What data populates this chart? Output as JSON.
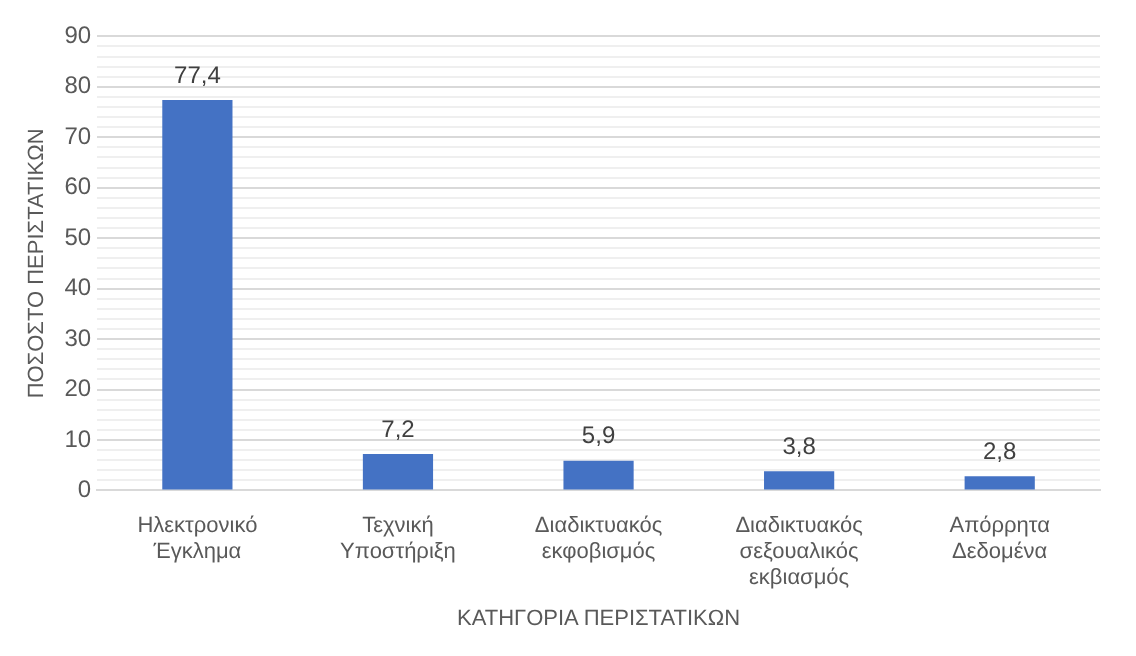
{
  "chart_data": {
    "type": "bar",
    "xlabel": "ΚΑΤΗΓΟΡΙΑ ΠΕΡΙΣΤΑΤΙΚΩΝ",
    "ylabel": "ΠΟΣΟΣΤΟ ΠΕΡΙΣΤΑΤΙΚΩΝ",
    "categories": [
      "Ηλεκτρονικό Έγκλημα",
      "Τεχνική  Υποστήριξη",
      "Διαδικτυακός εκφοβισμός",
      "Διαδικτυακός σεξουαλικός εκβιασμός",
      "Απόρρητα Δεδομένα"
    ],
    "values": [
      77.4,
      7.2,
      5.9,
      3.8,
      2.8
    ],
    "value_labels": [
      "77,4",
      "7,2",
      "5,9",
      "3,8",
      "2,8"
    ],
    "color": "#4472c4",
    "ylim": [
      0,
      90
    ],
    "yticks": [
      0,
      {
        "value": 2,
        "label": null
      },
      {
        "value": 4,
        "label": null
      },
      {
        "value": 6,
        "label": null
      },
      {
        "value": 8,
        "label": null
      },
      10,
      {
        "value": 12,
        "label": null
      },
      {
        "value": 14,
        "label": null
      },
      {
        "value": 16,
        "label": null
      },
      {
        "value": 18,
        "label": null
      },
      20,
      {
        "value": 22,
        "label": null
      },
      {
        "value": 24,
        "label": null
      },
      {
        "value": 26,
        "label": null
      },
      {
        "value": 28,
        "label": null
      },
      30,
      {
        "value": 32,
        "label": null
      },
      {
        "value": 34,
        "label": null
      },
      {
        "value": 36,
        "label": null
      },
      {
        "value": 38,
        "label": null
      },
      40,
      {
        "value": 42,
        "label": null
      },
      {
        "value": 44,
        "label": null
      },
      {
        "value": 46,
        "label": null
      },
      {
        "value": 48,
        "label": null
      },
      50,
      {
        "value": 52,
        "label": null
      },
      {
        "value": 54,
        "label": null
      },
      {
        "value": 56,
        "label": null
      },
      {
        "value": 58,
        "label": null
      },
      60,
      {
        "value": 62,
        "label": null
      },
      {
        "value": 64,
        "label": null
      },
      {
        "value": 66,
        "label": null
      },
      {
        "value": 68,
        "label": null
      },
      70,
      {
        "value": 72,
        "label": null
      },
      {
        "value": 74,
        "label": null
      },
      {
        "value": 76,
        "label": null
      },
      {
        "value": 78,
        "label": null
      },
      80,
      {
        "value": 82,
        "label": null
      },
      {
        "value": 84,
        "label": null
      },
      {
        "value": 86,
        "label": null
      },
      {
        "value": 88,
        "label": null
      },
      90
    ],
    "grid": "y",
    "legend": false
  }
}
